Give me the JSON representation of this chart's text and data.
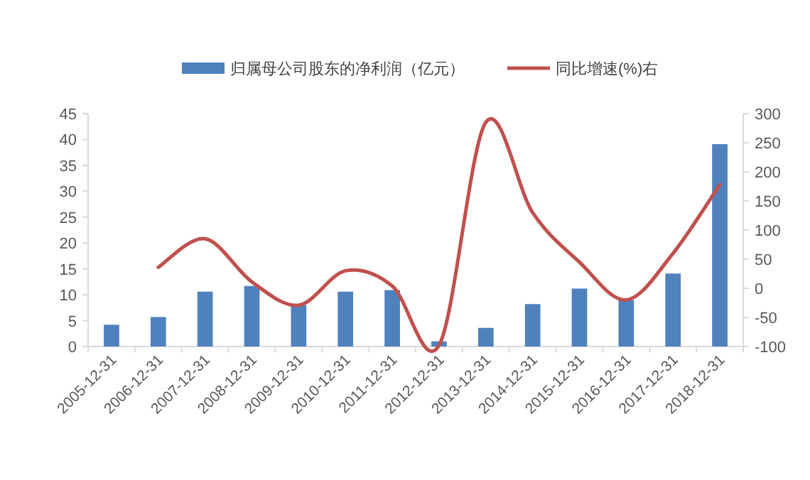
{
  "chart_data": {
    "type": "bar",
    "categories": [
      "2005-12-31",
      "2006-12-31",
      "2007-12-31",
      "2008-12-31",
      "2009-12-31",
      "2010-12-31",
      "2011-12-31",
      "2012-12-31",
      "2013-12-31",
      "2014-12-31",
      "2015-12-31",
      "2016-12-31",
      "2017-12-31",
      "2018-12-31"
    ],
    "series": [
      {
        "name": "归属母公司股东的净利润（亿元）",
        "color": "#4f81bd",
        "values": [
          4.2,
          5.7,
          10.6,
          11.7,
          8.0,
          10.6,
          10.9,
          1.0,
          3.6,
          8.2,
          11.2,
          9.0,
          14.1,
          39.1
        ]
      },
      {
        "name": "同比增速(%)右",
        "type": "line",
        "axis": "y2",
        "color": "#c0504d",
        "values": [
          null,
          36,
          85,
          11,
          -29,
          30,
          4,
          -98,
          285,
          130,
          45,
          -20,
          60,
          178
        ]
      }
    ],
    "ylim": [
      0,
      45
    ],
    "yticks": [
      0,
      5,
      10,
      15,
      20,
      25,
      30,
      35,
      40,
      45
    ],
    "y2lim": [
      -100,
      300
    ],
    "y2ticks": [
      -100,
      -50,
      0,
      50,
      100,
      150,
      200,
      250,
      300
    ],
    "legend": "top",
    "grid": false
  }
}
